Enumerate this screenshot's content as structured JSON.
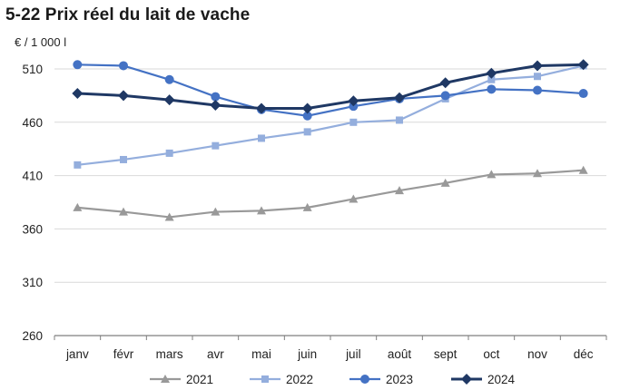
{
  "title": "5-22 Prix réel du lait de vache",
  "chart_data": {
    "type": "line",
    "title": "5-22 Prix réel du lait de vache",
    "ylabel": "€ / 1 000 l",
    "xlabel": "",
    "ylim": [
      260,
      510
    ],
    "yticks": [
      260,
      310,
      360,
      410,
      460,
      510
    ],
    "categories": [
      "janv",
      "févr",
      "mars",
      "avr",
      "mai",
      "juin",
      "juil",
      "août",
      "sept",
      "oct",
      "nov",
      "déc"
    ],
    "grid": "horizontal",
    "legend_position": "bottom",
    "series": [
      {
        "name": "2021",
        "color": "#999999",
        "marker": "triangle",
        "values": [
          380,
          376,
          371,
          376,
          377,
          380,
          388,
          396,
          403,
          411,
          412,
          415
        ]
      },
      {
        "name": "2022",
        "color": "#94aedd",
        "marker": "square",
        "values": [
          420,
          425,
          431,
          438,
          445,
          451,
          460,
          462,
          482,
          500,
          503,
          513
        ]
      },
      {
        "name": "2023",
        "color": "#4472c4",
        "marker": "circle",
        "values": [
          514,
          513,
          500,
          484,
          472,
          466,
          475,
          482,
          485,
          491,
          490,
          487
        ]
      },
      {
        "name": "2024",
        "color": "#1f3864",
        "marker": "diamond",
        "values": [
          487,
          485,
          481,
          476,
          473,
          473,
          480,
          483,
          497,
          506,
          513,
          514
        ]
      }
    ]
  }
}
